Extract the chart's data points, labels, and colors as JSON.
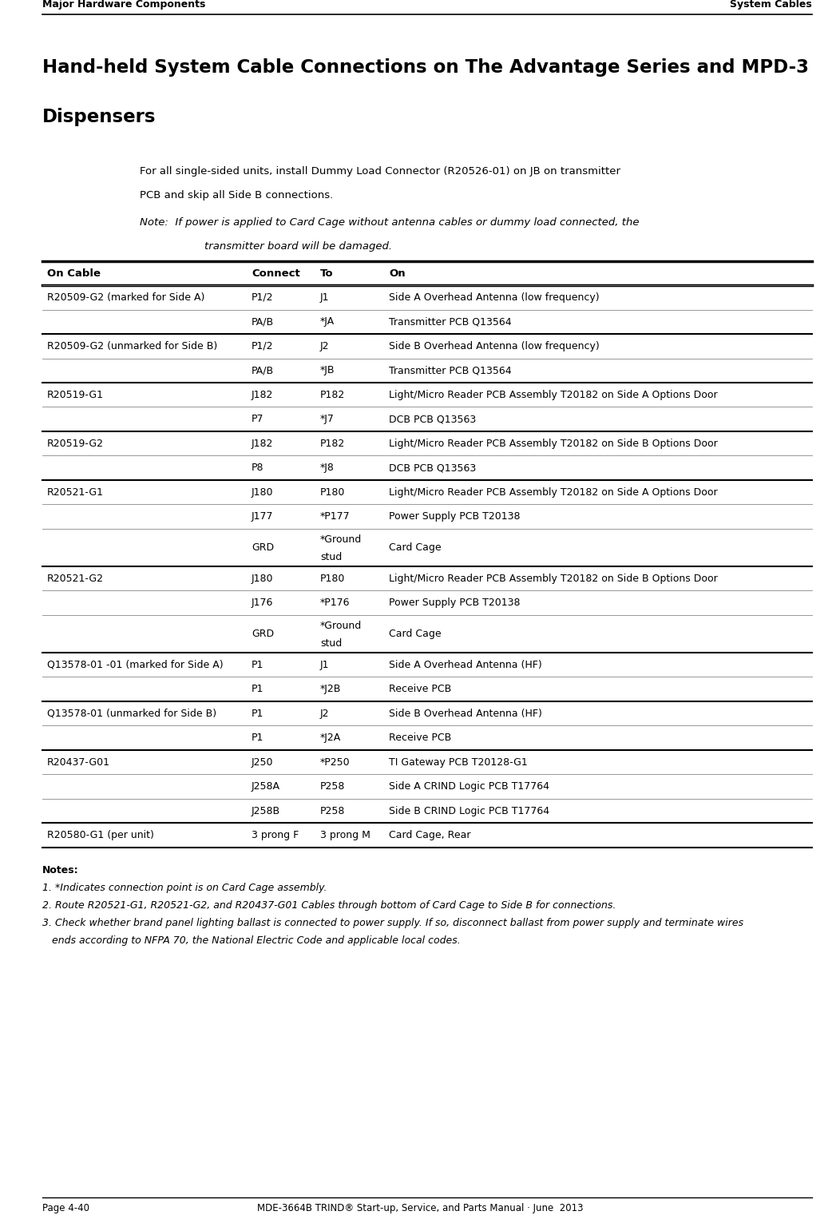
{
  "header_left": "Major Hardware Components",
  "header_right": "System Cables",
  "footer_left": "Page 4-40",
  "footer_right": "MDE-3664B TRIND® Start-up, Service, and Parts Manual · June  2013",
  "title_line1": "Hand-held System Cable Connections on The Advantage Series and MPD-3",
  "title_line2": "Dispensers",
  "intro_line1": "For all single-sided units, install Dummy Load Connector (R20526-01) on JB on transmitter",
  "intro_line2": "PCB and skip all Side B connections.",
  "note_line1": "Note:  If power is applied to Card Cage without antenna cables or dummy load connected, the",
  "note_line2": "            transmitter board will be damaged.",
  "col_headers": [
    "On Cable",
    "Connect",
    "To",
    "On"
  ],
  "table_rows": [
    {
      "cells": [
        "R20509-G2 (marked for Side A)",
        "P1/2",
        "J1",
        "Side A Overhead Antenna (low frequency)"
      ],
      "group_start": true
    },
    {
      "cells": [
        "",
        "PA/B",
        "*JA",
        "Transmitter PCB Q13564"
      ],
      "group_start": false
    },
    {
      "cells": [
        "R20509-G2 (unmarked for Side B)",
        "P1/2",
        "J2",
        "Side B Overhead Antenna (low frequency)"
      ],
      "group_start": true
    },
    {
      "cells": [
        "",
        "PA/B",
        "*JB",
        "Transmitter PCB Q13564"
      ],
      "group_start": false
    },
    {
      "cells": [
        "R20519-G1",
        "J182",
        "P182",
        "Light/Micro Reader PCB Assembly T20182 on Side A Options Door"
      ],
      "group_start": true
    },
    {
      "cells": [
        "",
        "P7",
        "*J7",
        "DCB PCB Q13563"
      ],
      "group_start": false
    },
    {
      "cells": [
        "R20519-G2",
        "J182",
        "P182",
        "Light/Micro Reader PCB Assembly T20182 on Side B Options Door"
      ],
      "group_start": true
    },
    {
      "cells": [
        "",
        "P8",
        "*J8",
        "DCB PCB Q13563"
      ],
      "group_start": false
    },
    {
      "cells": [
        "R20521-G1",
        "J180",
        "P180",
        "Light/Micro Reader PCB Assembly T20182 on Side A Options Door"
      ],
      "group_start": true
    },
    {
      "cells": [
        "",
        "J177",
        "*P177",
        "Power Supply PCB T20138"
      ],
      "group_start": false
    },
    {
      "cells": [
        "",
        "GRD",
        "*Ground\nstud",
        "Card Cage"
      ],
      "group_start": false
    },
    {
      "cells": [
        "R20521-G2",
        "J180",
        "P180",
        "Light/Micro Reader PCB Assembly T20182 on Side B Options Door"
      ],
      "group_start": true
    },
    {
      "cells": [
        "",
        "J176",
        "*P176",
        "Power Supply PCB T20138"
      ],
      "group_start": false
    },
    {
      "cells": [
        "",
        "GRD",
        "*Ground\nstud",
        "Card Cage"
      ],
      "group_start": false
    },
    {
      "cells": [
        "Q13578-01 -01 (marked for Side A)",
        "P1",
        "J1",
        "Side A Overhead Antenna (HF)"
      ],
      "group_start": true
    },
    {
      "cells": [
        "",
        "P1",
        "*J2B",
        "Receive PCB"
      ],
      "group_start": false
    },
    {
      "cells": [
        "Q13578-01 (unmarked for Side B)",
        "P1",
        "J2",
        "Side B Overhead Antenna (HF)"
      ],
      "group_start": true
    },
    {
      "cells": [
        "",
        "P1",
        "*J2A",
        "Receive PCB"
      ],
      "group_start": false
    },
    {
      "cells": [
        "R20437-G01",
        "J250",
        "*P250",
        "TI Gateway PCB T20128-G1"
      ],
      "group_start": true
    },
    {
      "cells": [
        "",
        "J258A",
        "P258",
        "Side A CRIND Logic PCB T17764"
      ],
      "group_start": false
    },
    {
      "cells": [
        "",
        "J258B",
        "P258",
        "Side B CRIND Logic PCB T17764"
      ],
      "group_start": false
    },
    {
      "cells": [
        "R20580-G1 (per unit)",
        "3 prong F",
        "3 prong M",
        "Card Cage, Rear"
      ],
      "group_start": true
    }
  ],
  "notes": [
    "Notes:",
    "1. *Indicates connection point is on Card Cage assembly.",
    "2. Route R20521-G1, R20521-G2, and R20437-G01 Cables through bottom of Card Cage to Side B for connections.",
    "3. Check whether brand panel lighting ballast is connected to power supply. If so, disconnect ballast from power supply and terminate wires",
    "   ends according to NFPA 70, the National Electric Code and applicable local codes."
  ],
  "bg_color": "#ffffff",
  "text_color": "#000000"
}
